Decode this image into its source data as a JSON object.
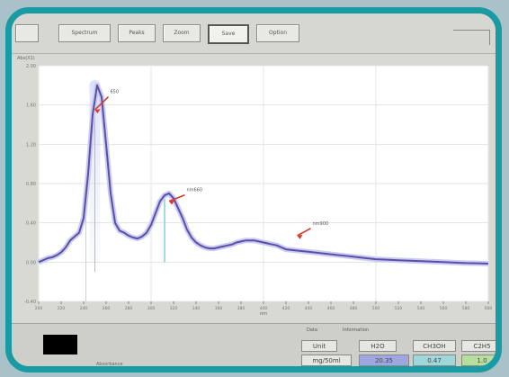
{
  "toolbar": {
    "buttons": [
      {
        "label": "Spectrum"
      },
      {
        "label": "Peaks"
      },
      {
        "label": "Zoom"
      },
      {
        "label": "Save"
      },
      {
        "label": "Option"
      }
    ]
  },
  "chart": {
    "header": "Abs(X1)",
    "x_axis_label": "nm",
    "y_tick_labels": [
      "2.00",
      "1.60",
      "1.20",
      "0.80",
      "0.40",
      "0.00",
      "-0.40"
    ],
    "x_tick_labels": [
      "200",
      "220",
      "240",
      "260",
      "280",
      "300",
      "320",
      "340",
      "360",
      "380",
      "400",
      "420",
      "440",
      "460",
      "480",
      "500",
      "520",
      "540",
      "560",
      "580",
      "600"
    ],
    "annotations": [
      "650",
      "nm660",
      "nm900"
    ],
    "series_color": "#5c4ea8",
    "annotation_color": "#d83a2a"
  },
  "chart_data": {
    "type": "line",
    "xlabel": "nm",
    "ylabel": "",
    "ylim": [
      -0.4,
      2.0
    ],
    "x": [
      200,
      204,
      208,
      212,
      216,
      220,
      224,
      228,
      232,
      236,
      240,
      244,
      248,
      252,
      256,
      260,
      264,
      268,
      272,
      276,
      280,
      284,
      288,
      292,
      296,
      300,
      304,
      308,
      312,
      316,
      320,
      324,
      328,
      332,
      336,
      340,
      344,
      348,
      352,
      356,
      360,
      364,
      368,
      372,
      376,
      380,
      384,
      388,
      392,
      396,
      400,
      404,
      408,
      412,
      416,
      420,
      428,
      436,
      444,
      452,
      460,
      468,
      476,
      484,
      492,
      500,
      510,
      520,
      530,
      540,
      550,
      560,
      570,
      580,
      590,
      600
    ],
    "values": [
      0.0,
      0.02,
      0.04,
      0.05,
      0.07,
      0.1,
      0.15,
      0.22,
      0.26,
      0.3,
      0.45,
      0.9,
      1.5,
      1.8,
      1.68,
      1.2,
      0.7,
      0.4,
      0.32,
      0.3,
      0.27,
      0.25,
      0.24,
      0.26,
      0.3,
      0.38,
      0.5,
      0.62,
      0.68,
      0.7,
      0.65,
      0.55,
      0.45,
      0.33,
      0.25,
      0.2,
      0.17,
      0.15,
      0.14,
      0.14,
      0.15,
      0.16,
      0.17,
      0.18,
      0.2,
      0.21,
      0.22,
      0.22,
      0.22,
      0.21,
      0.2,
      0.19,
      0.18,
      0.17,
      0.15,
      0.13,
      0.12,
      0.11,
      0.1,
      0.09,
      0.08,
      0.07,
      0.06,
      0.05,
      0.04,
      0.03,
      0.025,
      0.02,
      0.015,
      0.01,
      0.005,
      0.0,
      -0.005,
      -0.01,
      -0.012,
      -0.015
    ],
    "grid": true
  },
  "panel": {
    "unit_label": "Absorbance",
    "tabs": [
      "Data",
      "Information"
    ],
    "headers": [
      "Unit",
      "H2O",
      "CH3OH",
      "C2H5"
    ],
    "units_row": [
      "mg/50ml",
      "20.35",
      "0.47",
      "1.0"
    ]
  }
}
